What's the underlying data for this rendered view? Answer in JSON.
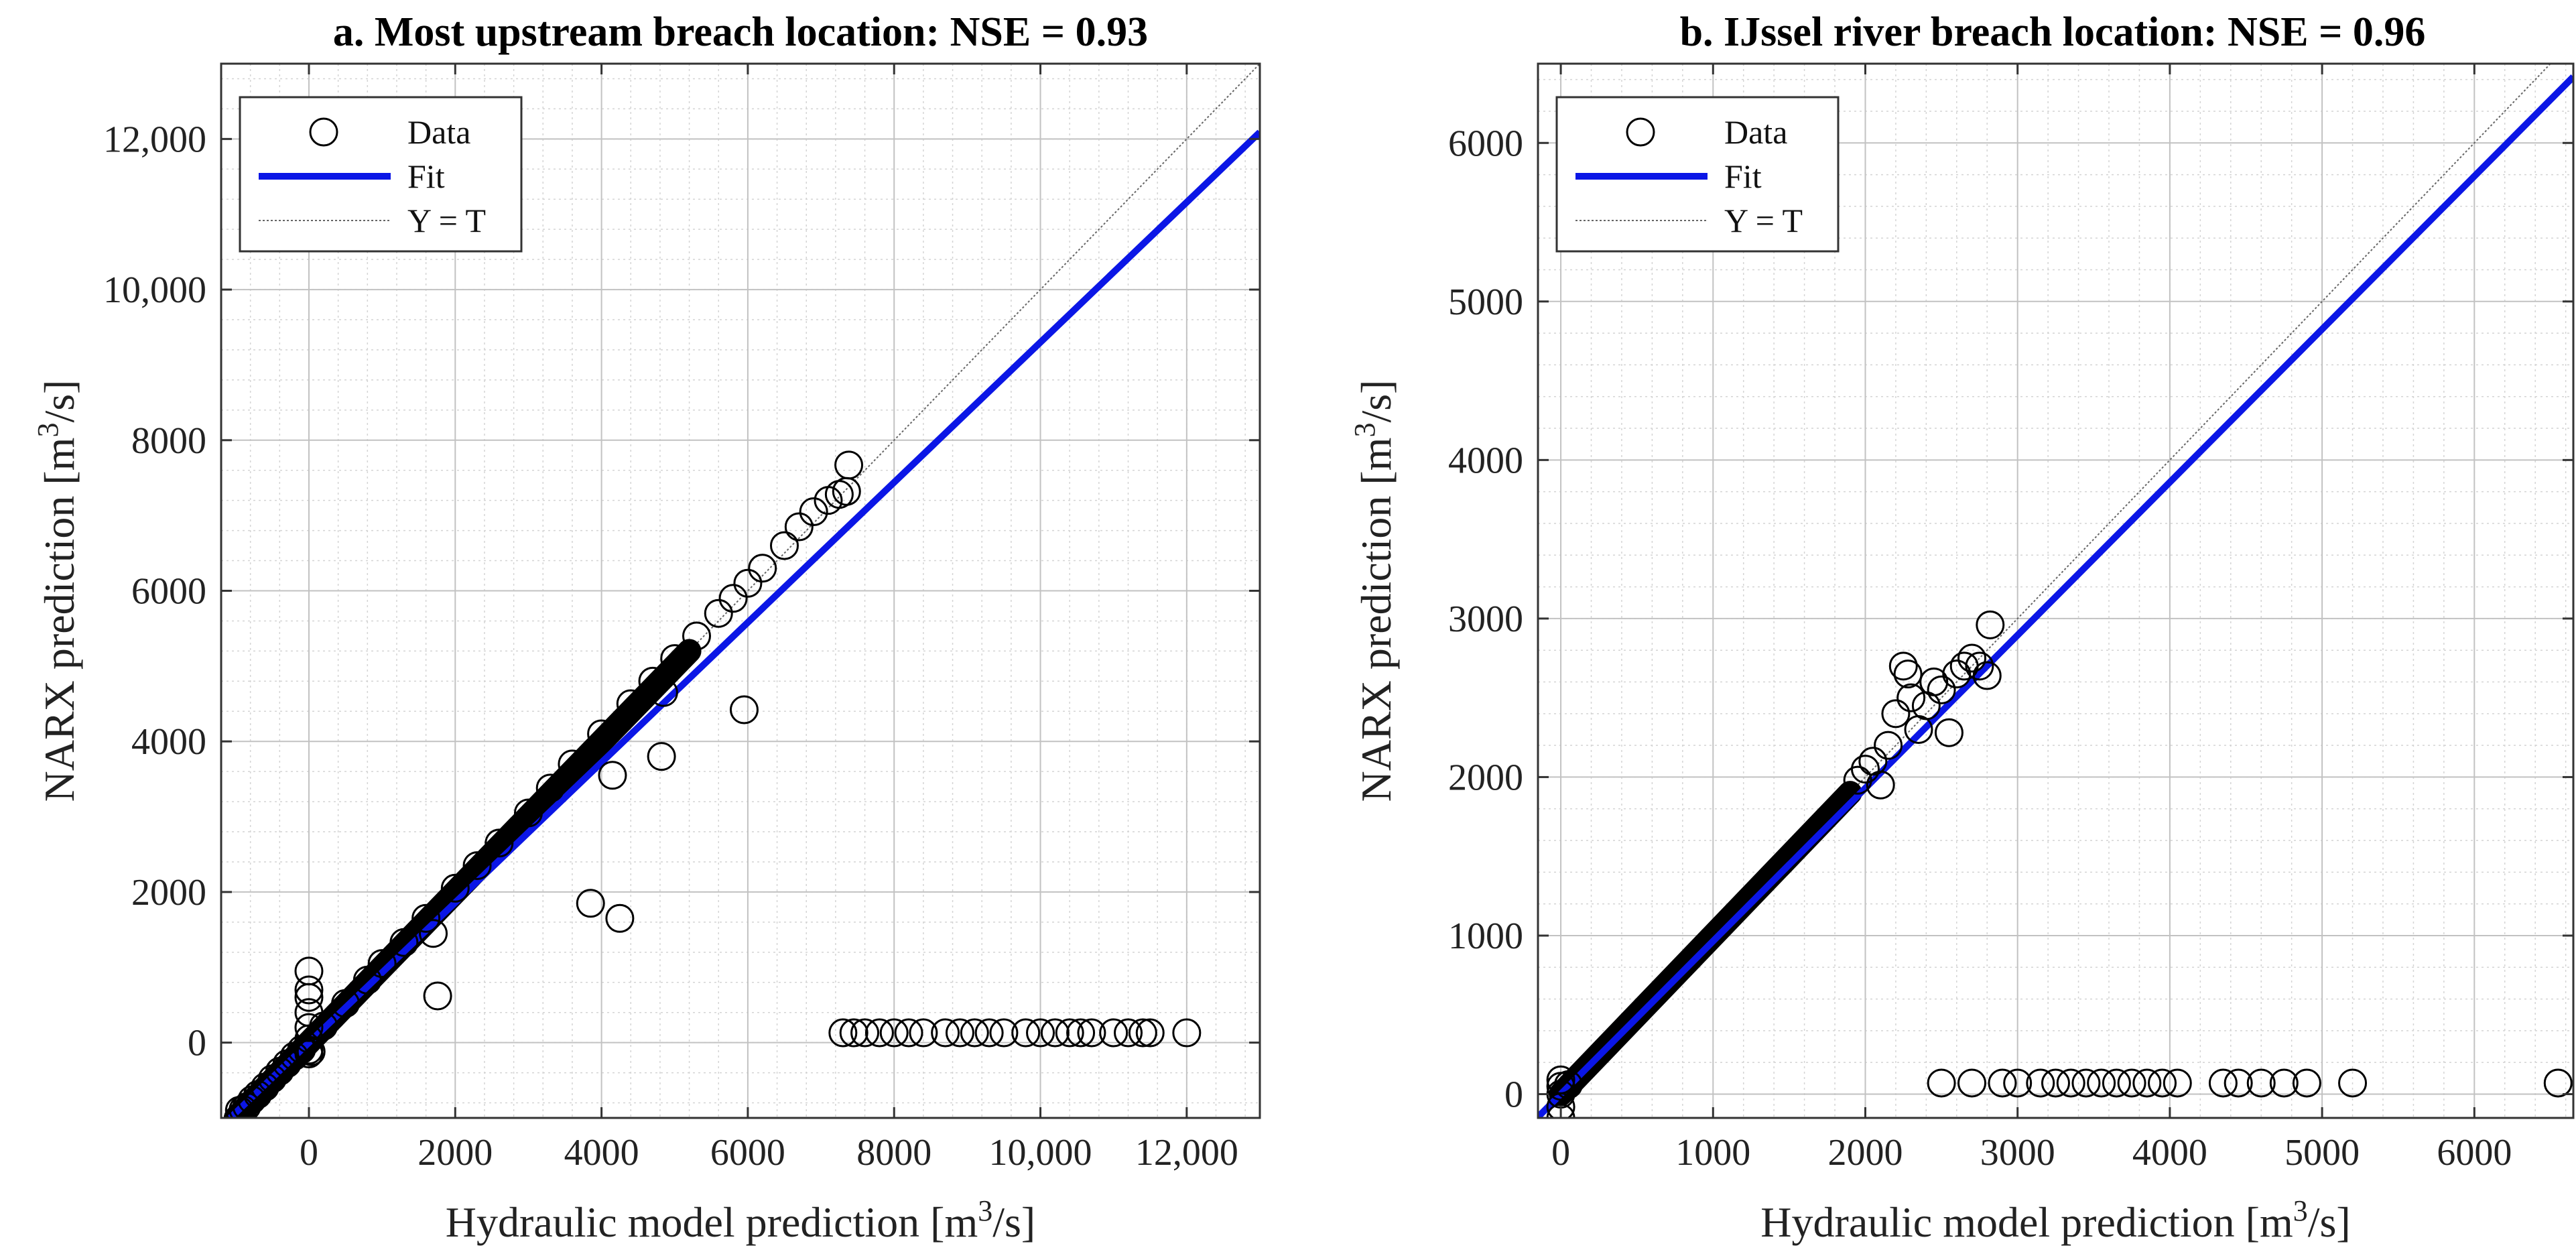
{
  "figure_titles": [
    "a. Most upstream breach location: NSE = 0.93",
    "b. IJssel river breach location: NSE = 0.96"
  ],
  "chart_data": [
    {
      "type": "scatter",
      "title": "a. Most upstream breach location: NSE = 0.93",
      "xlabel": "Hydraulic model prediction [m³/s]",
      "ylabel": "NARX prediction [m³/s]",
      "xlim": [
        -1200,
        13000
      ],
      "ylim": [
        -1000,
        13000
      ],
      "xticks": [
        0,
        2000,
        4000,
        6000,
        8000,
        10000,
        12000
      ],
      "xtick_labels": [
        "0",
        "2000",
        "4000",
        "6000",
        "8000",
        "10,000",
        "12,000"
      ],
      "yticks": [
        0,
        2000,
        4000,
        6000,
        8000,
        10000,
        12000
      ],
      "ytick_labels": [
        "0",
        "2000",
        "4000",
        "6000",
        "8000",
        "10,000",
        "12,000"
      ],
      "grid": true,
      "legend": {
        "position": "top-left",
        "entries": [
          "Data",
          "Fit",
          "Y = T"
        ]
      },
      "series": [
        {
          "name": "Data",
          "marker": "circle-open",
          "color": "#000000",
          "line_segment": {
            "x_start": -1000,
            "x_end": 5200,
            "slope": 1.0,
            "intercept": 0
          },
          "points": [
            [
              -950,
              -900
            ],
            [
              -900,
              -890
            ],
            [
              -850,
              -850
            ],
            [
              -780,
              -760
            ],
            [
              -700,
              -690
            ],
            [
              -600,
              -590
            ],
            [
              -500,
              -480
            ],
            [
              -400,
              -380
            ],
            [
              -300,
              -280
            ],
            [
              -200,
              -180
            ],
            [
              -100,
              -90
            ],
            [
              0,
              950
            ],
            [
              0,
              700
            ],
            [
              0,
              600
            ],
            [
              0,
              400
            ],
            [
              0,
              200
            ],
            [
              0,
              50
            ],
            [
              0,
              -100
            ],
            [
              0,
              -150
            ],
            [
              30,
              -120
            ],
            [
              200,
              220
            ],
            [
              500,
              520
            ],
            [
              800,
              830
            ],
            [
              1000,
              1050
            ],
            [
              1300,
              1330
            ],
            [
              1600,
              1650
            ],
            [
              1700,
              1450
            ],
            [
              1760,
              620
            ],
            [
              2000,
              2050
            ],
            [
              2300,
              2350
            ],
            [
              2600,
              2650
            ],
            [
              3000,
              3050
            ],
            [
              3300,
              3380
            ],
            [
              3600,
              3700
            ],
            [
              3850,
              1850
            ],
            [
              4150,
              3550
            ],
            [
              4250,
              1650
            ],
            [
              4000,
              4100
            ],
            [
              4400,
              4500
            ],
            [
              4700,
              4800
            ],
            [
              4820,
              3800
            ],
            [
              4850,
              4650
            ],
            [
              5000,
              5100
            ],
            [
              5300,
              5400
            ],
            [
              5600,
              5700
            ],
            [
              5800,
              5900
            ],
            [
              5950,
              4420
            ],
            [
              6000,
              6100
            ],
            [
              6200,
              6300
            ],
            [
              6500,
              6600
            ],
            [
              6700,
              6850
            ],
            [
              6900,
              7050
            ],
            [
              7100,
              7200
            ],
            [
              7250,
              7280
            ],
            [
              7350,
              7320
            ],
            [
              7380,
              7670
            ],
            [
              7300,
              130
            ],
            [
              7450,
              130
            ],
            [
              7600,
              130
            ],
            [
              7800,
              130
            ],
            [
              8000,
              130
            ],
            [
              8200,
              130
            ],
            [
              8400,
              130
            ],
            [
              8700,
              130
            ],
            [
              8900,
              130
            ],
            [
              9100,
              130
            ],
            [
              9300,
              130
            ],
            [
              9500,
              130
            ],
            [
              9800,
              130
            ],
            [
              10000,
              130
            ],
            [
              10200,
              130
            ],
            [
              10400,
              130
            ],
            [
              10550,
              130
            ],
            [
              10700,
              130
            ],
            [
              11000,
              130
            ],
            [
              11200,
              130
            ],
            [
              11400,
              130
            ],
            [
              11500,
              130
            ],
            [
              12000,
              130
            ]
          ]
        },
        {
          "name": "Fit",
          "color": "#0b16e6",
          "slope": 0.93,
          "intercept": 0
        },
        {
          "name": "Y = T",
          "color": "#666666",
          "slope": 1.0,
          "intercept": 0
        }
      ]
    },
    {
      "type": "scatter",
      "title": "b. IJssel river breach location: NSE = 0.96",
      "xlabel": "Hydraulic model prediction [m³/s]",
      "ylabel": "NARX prediction [m³/s]",
      "xlim": [
        -150,
        6650
      ],
      "ylim": [
        -150,
        6500
      ],
      "xticks": [
        0,
        1000,
        2000,
        3000,
        4000,
        5000,
        6000
      ],
      "xtick_labels": [
        "0",
        "1000",
        "2000",
        "3000",
        "4000",
        "5000",
        "6000"
      ],
      "yticks": [
        0,
        1000,
        2000,
        3000,
        4000,
        5000,
        6000
      ],
      "ytick_labels": [
        "0",
        "1000",
        "2000",
        "3000",
        "4000",
        "5000",
        "6000"
      ],
      "grid": true,
      "legend": {
        "position": "top-left",
        "entries": [
          "Data",
          "Fit",
          "Y = T"
        ]
      },
      "series": [
        {
          "name": "Data",
          "marker": "circle-open",
          "color": "#000000",
          "line_segment": {
            "x_start": 0,
            "x_end": 1900,
            "slope": 1.0,
            "intercept": 0
          },
          "points": [
            [
              0,
              -150
            ],
            [
              0,
              -80
            ],
            [
              0,
              0
            ],
            [
              0,
              50
            ],
            [
              0,
              90
            ],
            [
              50,
              60
            ],
            [
              1950,
              1980
            ],
            [
              2000,
              2050
            ],
            [
              2050,
              2100
            ],
            [
              2100,
              1950
            ],
            [
              2150,
              2200
            ],
            [
              2200,
              2400
            ],
            [
              2250,
              2700
            ],
            [
              2280,
              2650
            ],
            [
              2300,
              2500
            ],
            [
              2350,
              2300
            ],
            [
              2400,
              2450
            ],
            [
              2450,
              2600
            ],
            [
              2500,
              2550
            ],
            [
              2550,
              2280
            ],
            [
              2600,
              2650
            ],
            [
              2650,
              2700
            ],
            [
              2700,
              2750
            ],
            [
              2750,
              2700
            ],
            [
              2800,
              2640
            ],
            [
              2820,
              2960
            ],
            [
              2500,
              70
            ],
            [
              2700,
              70
            ],
            [
              2900,
              70
            ],
            [
              3000,
              70
            ],
            [
              3150,
              70
            ],
            [
              3250,
              70
            ],
            [
              3350,
              70
            ],
            [
              3450,
              70
            ],
            [
              3550,
              70
            ],
            [
              3650,
              70
            ],
            [
              3750,
              70
            ],
            [
              3850,
              70
            ],
            [
              3950,
              70
            ],
            [
              4050,
              70
            ],
            [
              4350,
              70
            ],
            [
              4450,
              70
            ],
            [
              4600,
              70
            ],
            [
              4750,
              70
            ],
            [
              4900,
              70
            ],
            [
              5200,
              70
            ],
            [
              6550,
              70
            ]
          ]
        },
        {
          "name": "Fit",
          "color": "#0b16e6",
          "slope": 0.965,
          "intercept": 0
        },
        {
          "name": "Y = T",
          "color": "#666666",
          "slope": 1.0,
          "intercept": 0
        }
      ]
    }
  ]
}
